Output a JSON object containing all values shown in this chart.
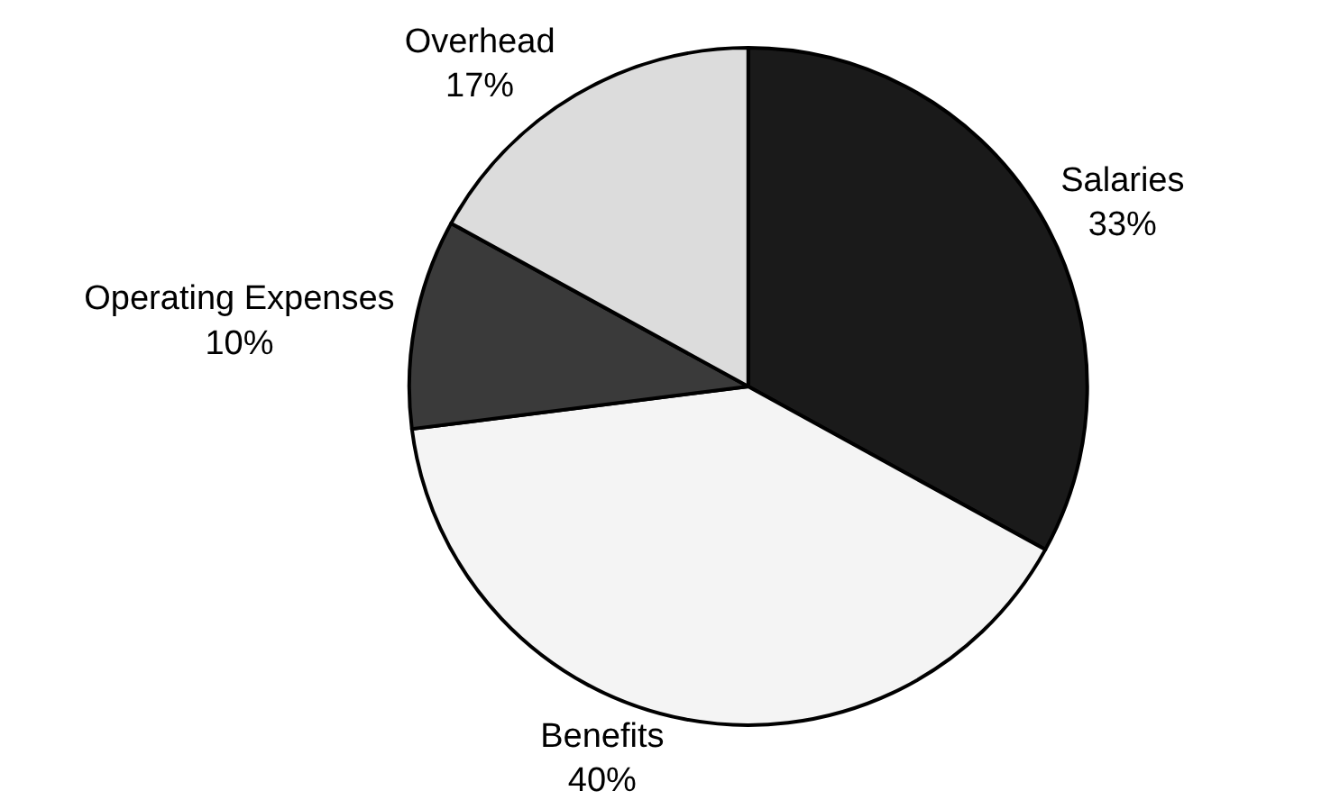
{
  "chart_data": {
    "type": "pie",
    "categories": [
      "Salaries",
      "Benefits",
      "Operating Expenses",
      "Overhead"
    ],
    "values": [
      33,
      40,
      10,
      17
    ],
    "value_labels": [
      "33%",
      "40%",
      "10%",
      "17%"
    ],
    "colors": [
      "#1a1a1a",
      "#f4f4f4",
      "#3a3a3a",
      "#dcdcdc"
    ],
    "legend": false
  }
}
